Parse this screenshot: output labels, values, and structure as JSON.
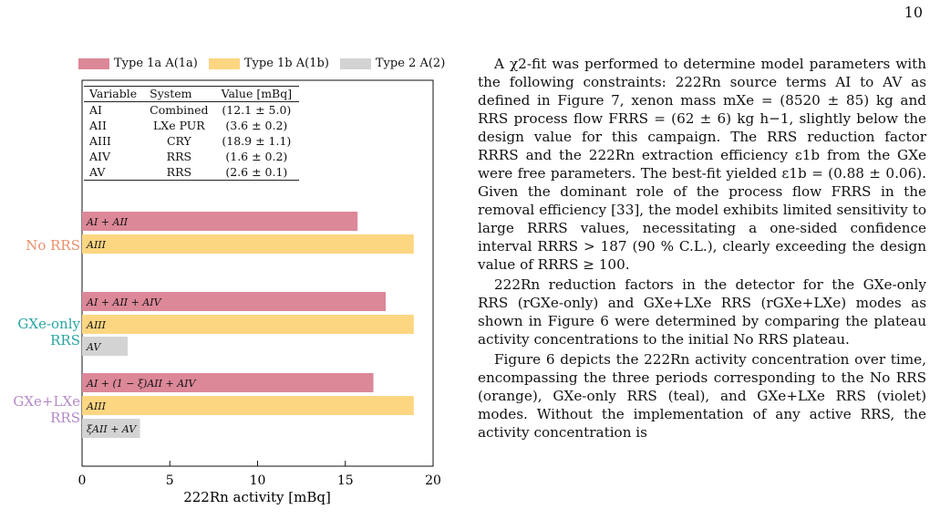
{
  "page_number": "10",
  "figure": {
    "legend": [
      {
        "label": "Type 1a A(1a)",
        "color": "#dc8898"
      },
      {
        "label": "Type 1b A(1b)",
        "color": "#fdd682"
      },
      {
        "label": "Type 2 A(2)",
        "color": "#d3d3d3"
      }
    ],
    "table": {
      "headers": [
        "Variable",
        "System",
        "Value [mBq]"
      ],
      "rows": [
        [
          "AI",
          "Combined",
          "(12.1 ± 5.0)"
        ],
        [
          "AII",
          "LXe PUR",
          "(3.6 ± 0.2)"
        ],
        [
          "AIII",
          "CRY",
          "(18.9 ± 1.1)"
        ],
        [
          "AIV",
          "RRS",
          "(1.6 ± 0.2)"
        ],
        [
          "AV",
          "RRS",
          "(2.6 ± 0.1)"
        ]
      ]
    },
    "group_labels": [
      {
        "text": "No RRS",
        "color": "#e8906a"
      },
      {
        "text": "GXe-only RRS",
        "color": "#2aa5a0"
      },
      {
        "text": "GXe+LXe RRS",
        "color": "#b58ac6"
      }
    ]
  },
  "chart_data": {
    "type": "bar",
    "orientation": "horizontal",
    "xlabel": "222Rn activity [mBq]",
    "xlim": [
      0,
      20
    ],
    "xticks": [
      0,
      5,
      10,
      15,
      20
    ],
    "bars": [
      {
        "group": "No RRS",
        "label": "AI + AII",
        "value": 15.7,
        "series": "Type 1a"
      },
      {
        "group": "No RRS",
        "label": "AIII",
        "value": 18.9,
        "series": "Type 1b"
      },
      {
        "group": "GXe-only RRS",
        "label": "AI + AII + AIV",
        "value": 17.3,
        "series": "Type 1a"
      },
      {
        "group": "GXe-only RRS",
        "label": "AIII",
        "value": 18.9,
        "series": "Type 1b"
      },
      {
        "group": "GXe-only RRS",
        "label": "AV",
        "value": 2.6,
        "series": "Type 2"
      },
      {
        "group": "GXe+LXe RRS",
        "label": "AI + (1 − ξ)AII + AIV",
        "value": 16.6,
        "series": "Type 1a"
      },
      {
        "group": "GXe+LXe RRS",
        "label": "AIII",
        "value": 18.9,
        "series": "Type 1b"
      },
      {
        "group": "GXe+LXe RRS",
        "label": "ξAII + AV",
        "value": 3.3,
        "series": "Type 2"
      }
    ],
    "series_colors": {
      "Type 1a": "#dc8898",
      "Type 1b": "#fdd682",
      "Type 2": "#d3d3d3"
    }
  },
  "text": {
    "p1": "A χ2-fit was performed to determine model parameters with the following constraints: 222Rn source terms AI to AV as defined in Figure 7, xenon mass mXe = (8520 ± 85) kg and RRS process flow FRRS = (62 ± 6) kg h−1, slightly below the design value for this campaign. The RRS reduction factor RRRS and the 222Rn extraction efficiency ε1b from the GXe were free parameters. The best-fit yielded ε1b = (0.88 ± 0.06). Given the dominant role of the process flow FRRS in the removal efficiency [33], the model exhibits limited sensitivity to large RRRS values, necessitating a one-sided confidence interval RRRS > 187 (90 % C.L.), clearly exceeding the design value of RRRS ≥ 100.",
    "p2": "222Rn reduction factors in the detector for the GXe-only RRS (rGXe-only) and GXe+LXe RRS (rGXe+LXe) modes as shown in Figure 6 were determined by comparing the plateau activity concentrations to the initial No RRS plateau.",
    "p3": "Figure 6 depicts the 222Rn activity concentration over time, encompassing the three periods corresponding to the No RRS (orange), GXe-only RRS (teal), and GXe+LXe RRS (violet) modes. Without the implementation of any active RRS, the activity concentration is"
  }
}
